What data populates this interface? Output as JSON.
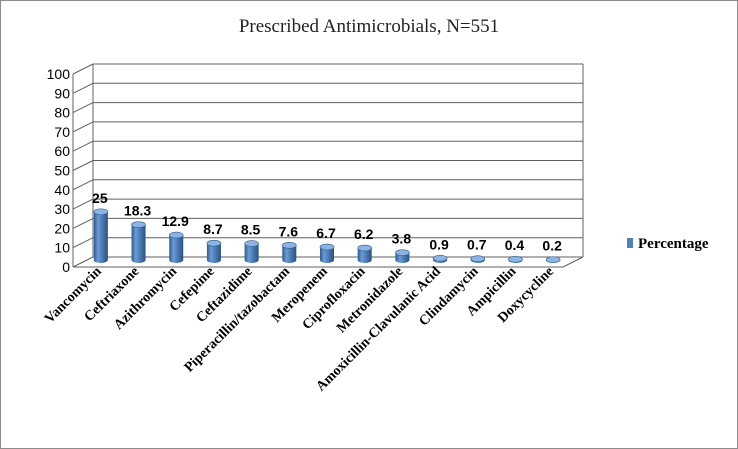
{
  "chart_data": {
    "type": "bar",
    "title": "Prescribed Antimicrobials, N=551",
    "categories": [
      "Vancomycin",
      "Ceftriaxone",
      "Azithromycin",
      "Cefepime",
      "Ceftazidime",
      "Piperacillin/tazobactam",
      "Meropenem",
      "Ciprofloxacin",
      "Metronidazole",
      "Amoxicillin-Clavulanic Acid",
      "Clindamycin",
      "Ampicillin",
      "Doxycycline"
    ],
    "series": [
      {
        "name": "Percentage",
        "values": [
          25,
          18.3,
          12.9,
          8.7,
          8.5,
          7.6,
          6.7,
          6.2,
          3.8,
          0.9,
          0.7,
          0.4,
          0.2
        ],
        "labels": [
          "25",
          "18.3",
          "12.9",
          "8.7",
          "8.5",
          "7.6",
          "6.7",
          "6.2",
          "3.8",
          "0.9",
          "0.7",
          "0.4",
          "0.2"
        ]
      }
    ],
    "yticks": [
      "0",
      "10",
      "20",
      "30",
      "40",
      "50",
      "60",
      "70",
      "80",
      "90",
      "100"
    ],
    "ylim": [
      0,
      100
    ],
    "grid": true,
    "legend_position": "right",
    "bar_shape": "3d-cylinder",
    "colors": {
      "bar": "#4f81bd",
      "bar_dark": "#2c5b8f",
      "bar_light": "#8db3e2",
      "grid": "#606060",
      "frame": "#8c8c8c"
    }
  }
}
